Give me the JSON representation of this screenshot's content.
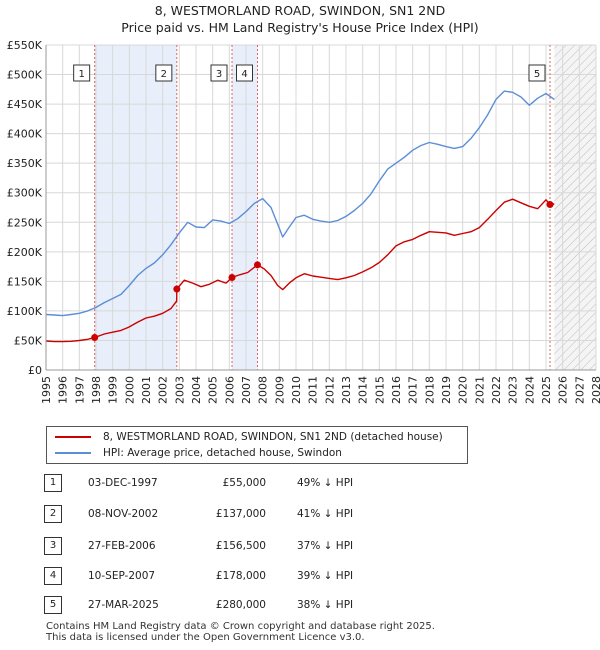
{
  "chart_data": {
    "type": "line",
    "title": "8, WESTMORLAND ROAD, SWINDON, SN1 2ND",
    "subtitle": "Price paid vs. HM Land Registry's House Price Index (HPI)",
    "xlim": [
      1995,
      2028
    ],
    "ylim": [
      0,
      550000
    ],
    "x_ticks": [
      1995,
      1996,
      1997,
      1998,
      1999,
      2000,
      2001,
      2002,
      2003,
      2004,
      2005,
      2006,
      2007,
      2008,
      2009,
      2010,
      2011,
      2012,
      2013,
      2014,
      2015,
      2016,
      2017,
      2018,
      2019,
      2020,
      2021,
      2022,
      2023,
      2024,
      2025,
      2026,
      2027,
      2028
    ],
    "y_ticks": [
      {
        "value": 0,
        "label": "£0"
      },
      {
        "value": 50000,
        "label": "£50K"
      },
      {
        "value": 100000,
        "label": "£100K"
      },
      {
        "value": 150000,
        "label": "£150K"
      },
      {
        "value": 200000,
        "label": "£200K"
      },
      {
        "value": 250000,
        "label": "£250K"
      },
      {
        "value": 300000,
        "label": "£300K"
      },
      {
        "value": 350000,
        "label": "£350K"
      },
      {
        "value": 400000,
        "label": "£400K"
      },
      {
        "value": 450000,
        "label": "£450K"
      },
      {
        "value": 500000,
        "label": "£500K"
      },
      {
        "value": 550000,
        "label": "£550K"
      }
    ],
    "grid": true,
    "shaded_periods": [
      [
        1997.92,
        2002.85
      ],
      [
        2006.16,
        2007.69
      ]
    ],
    "future_hatch_from": 2025.5,
    "series": [
      {
        "name": "8, WESTMORLAND ROAD, SWINDON, SN1 2ND (detached house)",
        "color": "#cc0000",
        "points": [
          [
            1995.0,
            49000
          ],
          [
            1995.5,
            48000
          ],
          [
            1996.0,
            48000
          ],
          [
            1996.5,
            48500
          ],
          [
            1997.0,
            50000
          ],
          [
            1997.5,
            52000
          ],
          [
            1997.92,
            55000
          ],
          [
            1998.5,
            61000
          ],
          [
            1999.0,
            64000
          ],
          [
            1999.5,
            67000
          ],
          [
            2000.0,
            73000
          ],
          [
            2000.5,
            81000
          ],
          [
            2001.0,
            88000
          ],
          [
            2001.5,
            91000
          ],
          [
            2002.0,
            96000
          ],
          [
            2002.5,
            104000
          ],
          [
            2002.84,
            117000
          ],
          [
            2002.85,
            137000
          ],
          [
            2003.3,
            152000
          ],
          [
            2003.8,
            147000
          ],
          [
            2004.3,
            141000
          ],
          [
            2004.8,
            145000
          ],
          [
            2005.3,
            152000
          ],
          [
            2005.8,
            147000
          ],
          [
            2006.16,
            156500
          ],
          [
            2006.6,
            161000
          ],
          [
            2007.1,
            165000
          ],
          [
            2007.69,
            178000
          ],
          [
            2008.1,
            171000
          ],
          [
            2008.5,
            160000
          ],
          [
            2008.9,
            143000
          ],
          [
            2009.2,
            136000
          ],
          [
            2009.6,
            147000
          ],
          [
            2010.0,
            156000
          ],
          [
            2010.5,
            163000
          ],
          [
            2011.0,
            159000
          ],
          [
            2011.5,
            157000
          ],
          [
            2012.0,
            155000
          ],
          [
            2012.5,
            153000
          ],
          [
            2013.0,
            156000
          ],
          [
            2013.5,
            160000
          ],
          [
            2014.0,
            166000
          ],
          [
            2014.5,
            173000
          ],
          [
            2015.0,
            182000
          ],
          [
            2015.5,
            195000
          ],
          [
            2016.0,
            210000
          ],
          [
            2016.5,
            217000
          ],
          [
            2017.0,
            221000
          ],
          [
            2017.5,
            228000
          ],
          [
            2018.0,
            234000
          ],
          [
            2018.5,
            233000
          ],
          [
            2019.0,
            232000
          ],
          [
            2019.5,
            228000
          ],
          [
            2020.0,
            231000
          ],
          [
            2020.5,
            234000
          ],
          [
            2021.0,
            241000
          ],
          [
            2021.5,
            255000
          ],
          [
            2022.0,
            270000
          ],
          [
            2022.5,
            284000
          ],
          [
            2023.0,
            289000
          ],
          [
            2023.5,
            283000
          ],
          [
            2024.0,
            277000
          ],
          [
            2024.5,
            273000
          ],
          [
            2025.0,
            288000
          ],
          [
            2025.24,
            280000
          ],
          [
            2025.5,
            281000
          ]
        ]
      },
      {
        "name": "HPI: Average price, detached house, Swindon",
        "color": "#5b8ed6",
        "points": [
          [
            1995.0,
            94000
          ],
          [
            1995.5,
            93000
          ],
          [
            1996.0,
            92000
          ],
          [
            1996.5,
            94000
          ],
          [
            1997.0,
            96000
          ],
          [
            1997.5,
            100000
          ],
          [
            1998.0,
            106000
          ],
          [
            1998.5,
            114000
          ],
          [
            1999.0,
            121000
          ],
          [
            1999.5,
            128000
          ],
          [
            2000.0,
            143000
          ],
          [
            2000.5,
            160000
          ],
          [
            2001.0,
            172000
          ],
          [
            2001.5,
            181000
          ],
          [
            2002.0,
            195000
          ],
          [
            2002.5,
            212000
          ],
          [
            2003.0,
            232000
          ],
          [
            2003.5,
            250000
          ],
          [
            2004.0,
            242000
          ],
          [
            2004.5,
            241000
          ],
          [
            2005.0,
            254000
          ],
          [
            2005.5,
            252000
          ],
          [
            2006.0,
            248000
          ],
          [
            2006.5,
            256000
          ],
          [
            2007.0,
            268000
          ],
          [
            2007.5,
            282000
          ],
          [
            2008.0,
            290000
          ],
          [
            2008.5,
            275000
          ],
          [
            2009.0,
            240000
          ],
          [
            2009.2,
            225000
          ],
          [
            2009.6,
            242000
          ],
          [
            2010.0,
            258000
          ],
          [
            2010.5,
            262000
          ],
          [
            2011.0,
            255000
          ],
          [
            2011.5,
            252000
          ],
          [
            2012.0,
            250000
          ],
          [
            2012.5,
            253000
          ],
          [
            2013.0,
            260000
          ],
          [
            2013.5,
            270000
          ],
          [
            2014.0,
            282000
          ],
          [
            2014.5,
            298000
          ],
          [
            2015.0,
            320000
          ],
          [
            2015.5,
            340000
          ],
          [
            2016.0,
            350000
          ],
          [
            2016.5,
            360000
          ],
          [
            2017.0,
            372000
          ],
          [
            2017.5,
            380000
          ],
          [
            2018.0,
            385000
          ],
          [
            2018.5,
            382000
          ],
          [
            2019.0,
            378000
          ],
          [
            2019.5,
            375000
          ],
          [
            2020.0,
            378000
          ],
          [
            2020.5,
            392000
          ],
          [
            2021.0,
            410000
          ],
          [
            2021.5,
            432000
          ],
          [
            2022.0,
            458000
          ],
          [
            2022.5,
            472000
          ],
          [
            2023.0,
            470000
          ],
          [
            2023.5,
            462000
          ],
          [
            2024.0,
            448000
          ],
          [
            2024.5,
            460000
          ],
          [
            2025.0,
            468000
          ],
          [
            2025.5,
            458000
          ]
        ]
      }
    ],
    "sales": [
      {
        "n": "1",
        "x": 1997.92,
        "price": 55000
      },
      {
        "n": "2",
        "x": 2002.85,
        "price": 137000
      },
      {
        "n": "3",
        "x": 2006.16,
        "price": 156500
      },
      {
        "n": "4",
        "x": 2007.69,
        "price": 178000
      },
      {
        "n": "5",
        "x": 2025.24,
        "price": 280000
      }
    ]
  },
  "legend": {
    "property": "8, WESTMORLAND ROAD, SWINDON, SN1 2ND (detached house)",
    "hpi": "HPI: Average price, detached house, Swindon",
    "property_color": "#cc0000",
    "hpi_color": "#5b8ed6"
  },
  "transactions": [
    {
      "n": "1",
      "date": "03-DEC-1997",
      "price": "£55,000",
      "hpi": "49% ↓ HPI"
    },
    {
      "n": "2",
      "date": "08-NOV-2002",
      "price": "£137,000",
      "hpi": "41% ↓ HPI"
    },
    {
      "n": "3",
      "date": "27-FEB-2006",
      "price": "£156,500",
      "hpi": "37% ↓ HPI"
    },
    {
      "n": "4",
      "date": "10-SEP-2007",
      "price": "£178,000",
      "hpi": "39% ↓ HPI"
    },
    {
      "n": "5",
      "date": "27-MAR-2025",
      "price": "£280,000",
      "hpi": "38% ↓ HPI"
    }
  ],
  "footer": {
    "line1": "Contains HM Land Registry data © Crown copyright and database right 2025.",
    "line2": "This data is licensed under the Open Government Licence v3.0."
  }
}
